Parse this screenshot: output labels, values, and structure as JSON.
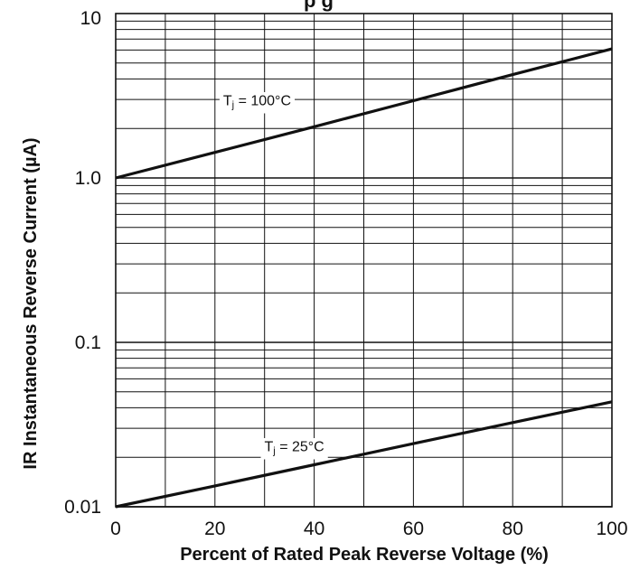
{
  "chart_data": {
    "type": "line",
    "title": "...pical Reverse Characteristics (partially cut off)",
    "title_visible": "p  g",
    "xlabel": "Percent of Rated Peak Reverse Voltage (%)",
    "ylabel": "IR Instantaneous Reverse Current (µA)",
    "xlim": [
      0,
      100
    ],
    "ylim": [
      0.01,
      10
    ],
    "yscale": "log",
    "grid": true,
    "x_ticks": [
      0,
      20,
      40,
      60,
      80,
      100
    ],
    "x_tick_labels": [
      "0",
      "20",
      "40",
      "60",
      "80",
      "100"
    ],
    "y_ticks": [
      0.01,
      0.1,
      1.0,
      10
    ],
    "y_tick_labels": [
      "0.01",
      "0.1",
      "1.0",
      "10"
    ],
    "series": [
      {
        "name": "Tj = 100°C",
        "label_main": "T",
        "label_sub": "j",
        "label_rest": " = 100°C",
        "x": [
          0,
          20,
          40,
          60,
          80,
          100
        ],
        "values": [
          1.0,
          1.43,
          2.05,
          2.95,
          4.25,
          6.1
        ]
      },
      {
        "name": "Tj = 25°C",
        "label_main": "T",
        "label_sub": "j",
        "label_rest": " = 25°C",
        "x": [
          0,
          20,
          40,
          60,
          80,
          100
        ],
        "values": [
          0.01,
          0.0134,
          0.018,
          0.0242,
          0.0325,
          0.0435
        ]
      }
    ],
    "colors": {
      "line": "#111111",
      "grid": "#111111",
      "background": "#ffffff"
    }
  }
}
